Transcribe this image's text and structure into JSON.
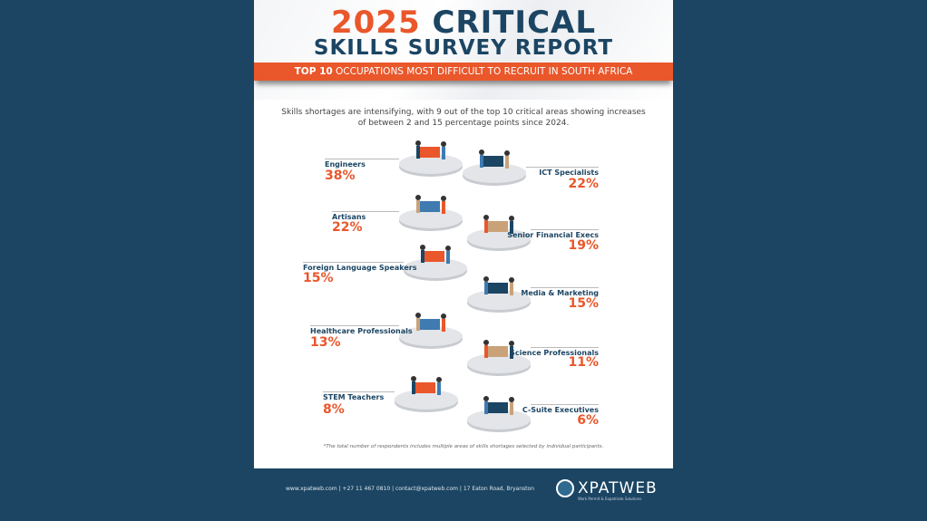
{
  "title": {
    "year": "2025",
    "critical": "CRITICAL",
    "line2": "SKILLS SURVEY REPORT"
  },
  "banner": {
    "bold": "TOP 10",
    "rest": " OCCUPATIONS MOST DIFFICULT TO RECRUIT IN SOUTH AFRICA"
  },
  "intro": "Skills shortages are intensifying, with 9 out of the top 10 critical areas showing increases of between 2 and 15 percentage points since 2024.",
  "occupations": [
    {
      "label": "Engineers",
      "pct": "38%"
    },
    {
      "label": "ICT Specialists",
      "pct": "22%"
    },
    {
      "label": "Artisans",
      "pct": "22%"
    },
    {
      "label": "Senior Financial Execs",
      "pct": "19%"
    },
    {
      "label": "Foreign Language Speakers",
      "pct": "15%"
    },
    {
      "label": "Media & Marketing",
      "pct": "15%"
    },
    {
      "label": "Healthcare Professionals",
      "pct": "13%"
    },
    {
      "label": "Science Professionals",
      "pct": "11%"
    },
    {
      "label": "STEM Teachers",
      "pct": "8%"
    },
    {
      "label": "C-Suite Executives",
      "pct": "6%"
    }
  ],
  "footnote": "*The total number of respondents includes multiple areas of skills shortages selected by individual participants.",
  "footer": {
    "contact": "www.xpatweb.com  |  +27 11 467 0810  | contact@xpatweb.com | 17 Eaton Road, Bryanston",
    "logo": "XPATWEB",
    "tagline": "Work Permit & Expatriate Solutions"
  },
  "colors": {
    "accent": "#e9572b",
    "navy": "#1b4563"
  }
}
